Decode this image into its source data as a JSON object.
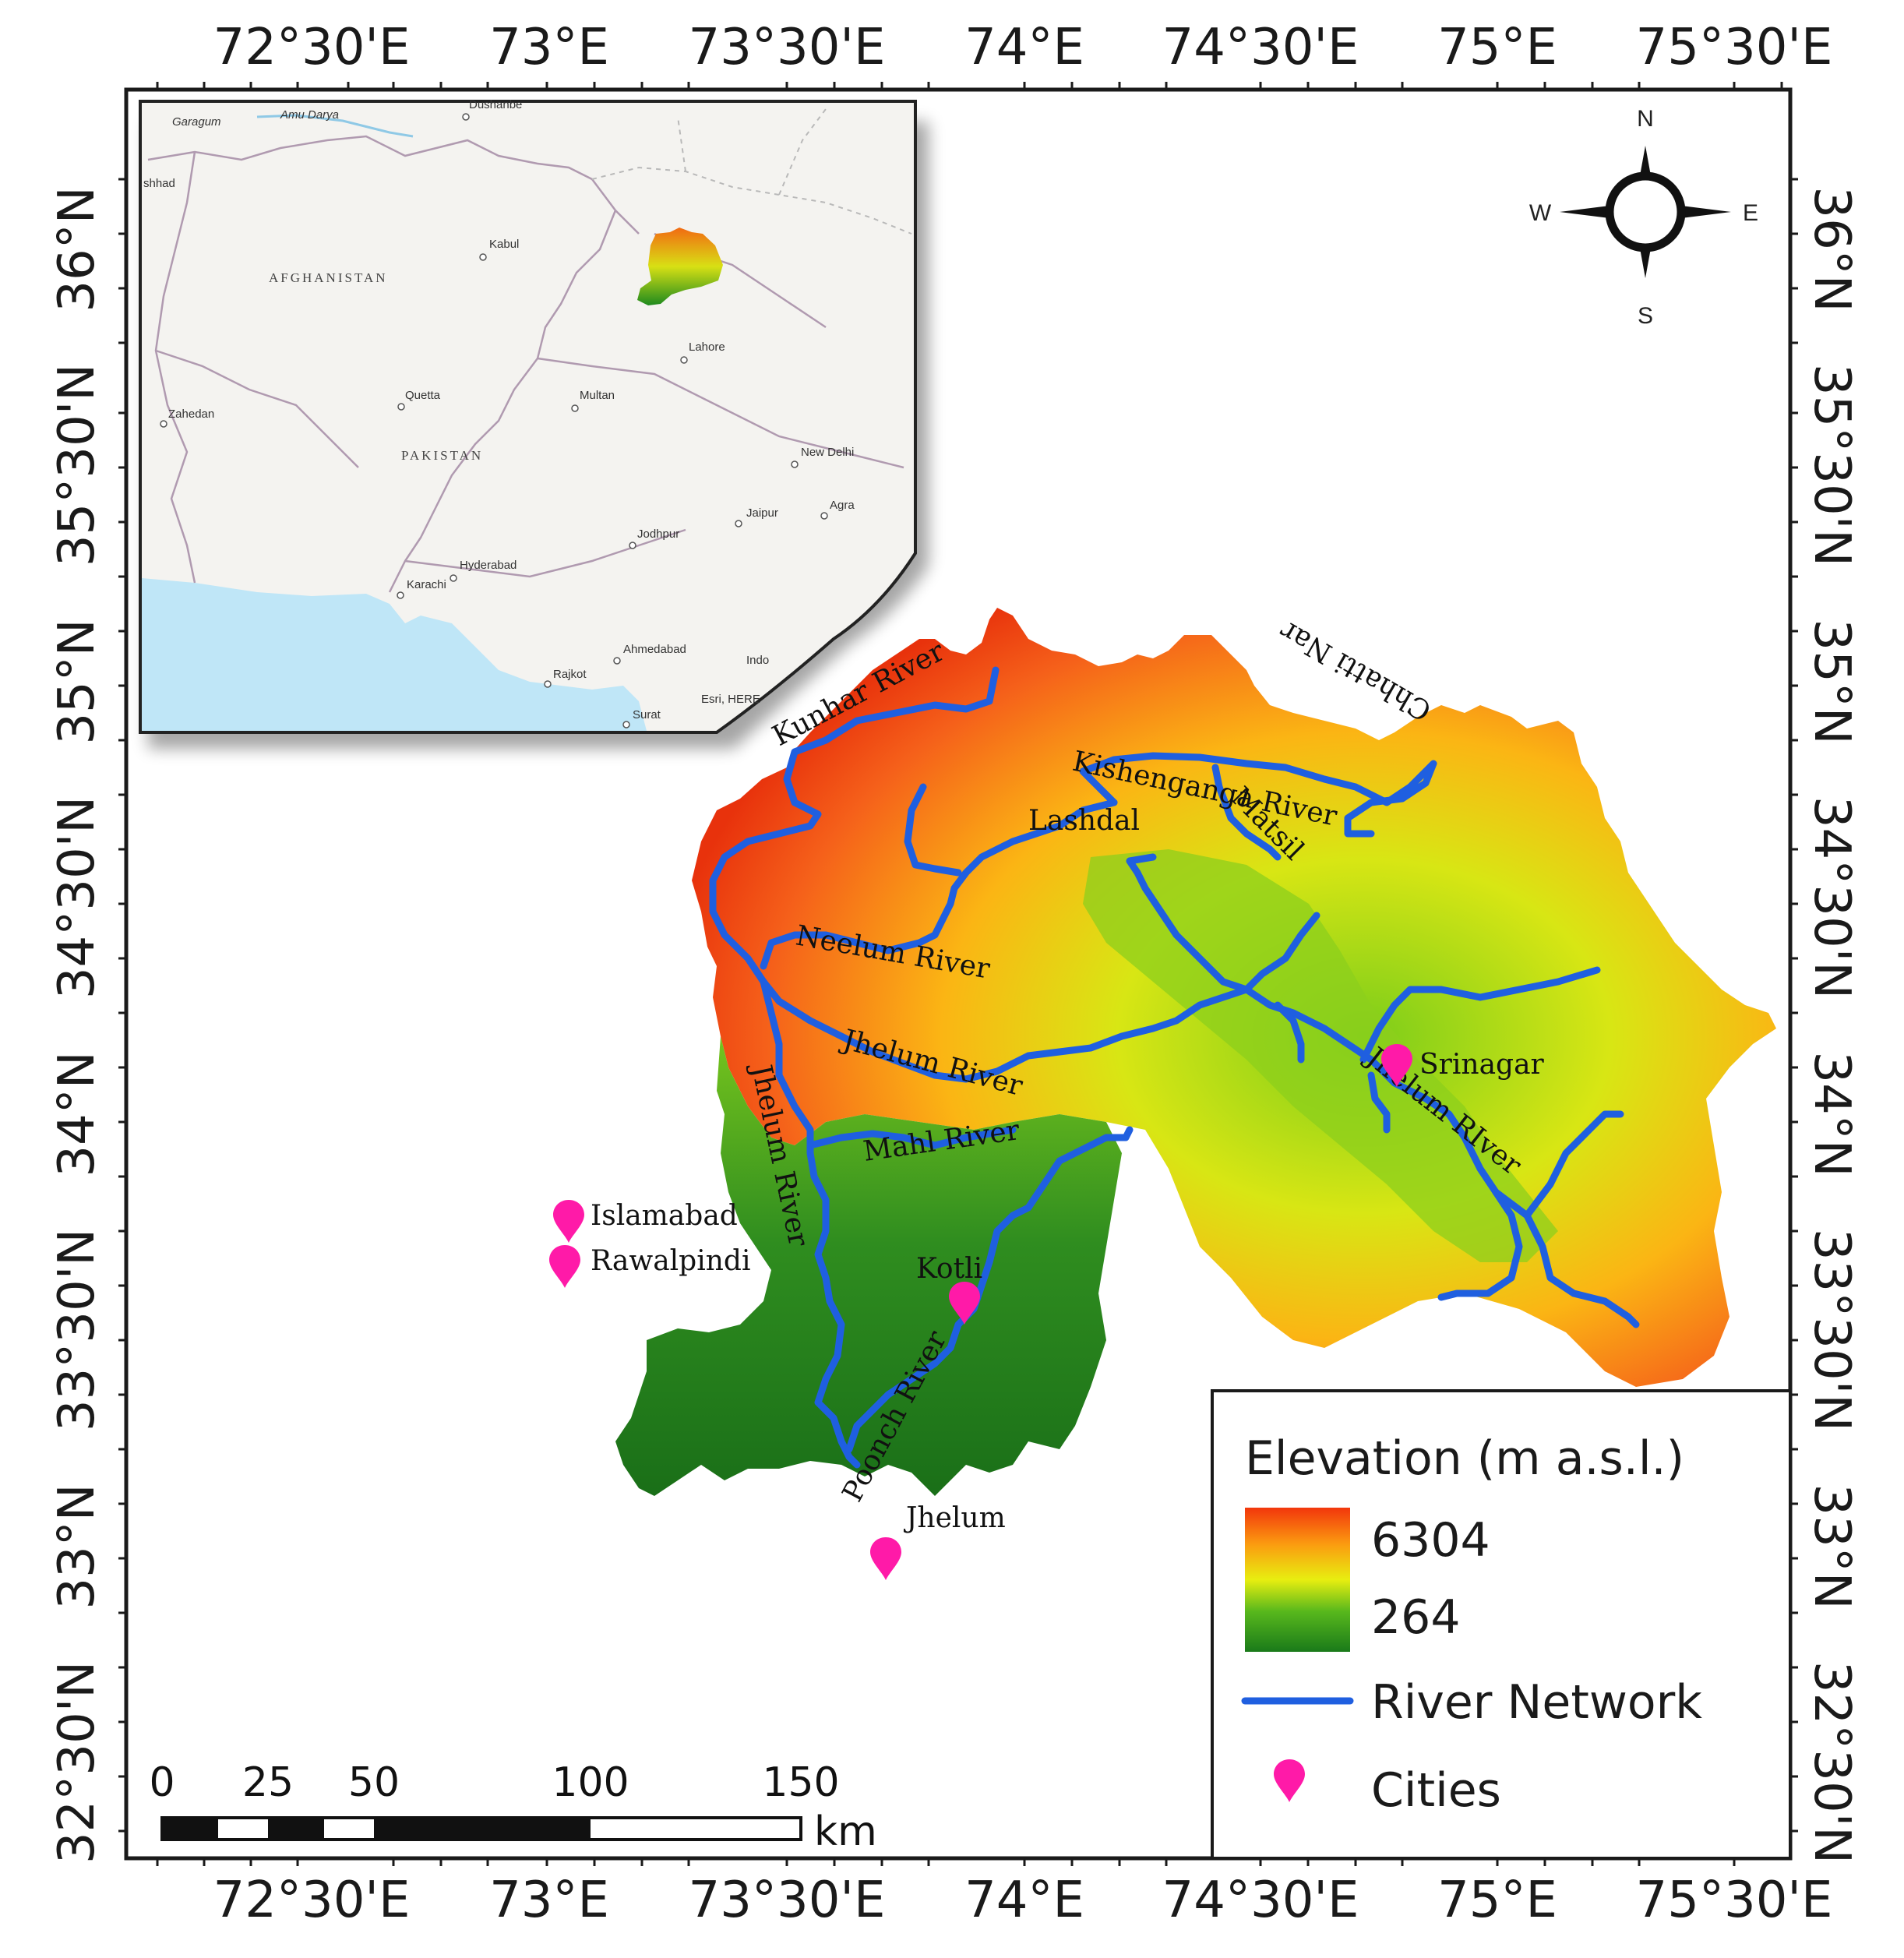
{
  "graticule": {
    "lon_labels": [
      "72°30'E",
      "73°E",
      "73°30'E",
      "74°E",
      "74°30'E",
      "75°E",
      "75°30'E"
    ],
    "lat_labels": [
      "36°N",
      "35°30'N",
      "35°N",
      "34°30'N",
      "34°N",
      "33°30'N",
      "33°N",
      "32°30'N"
    ]
  },
  "compass": {
    "n": "N",
    "s": "S",
    "e": "E",
    "w": "W"
  },
  "rivers": {
    "kunhar": "Kunhar River",
    "kishenganga": "Kishenganga River",
    "chhatti_nar": "Chhatti Nar",
    "lashdal": "Lashdal",
    "matsil": "Matsil",
    "neelum": "Neelum River",
    "jhelum_mid": "Jhelum River",
    "jhelum_west": "Jhelum River",
    "jhelum_east": "Jhelum RIver",
    "mahl": "Mahl River",
    "poonch": "Poonch River"
  },
  "cities": {
    "islamabad": "Islamabad",
    "rawalpindi": "Rawalpindi",
    "kotli": "Kotli",
    "srinagar": "Srinagar",
    "jhelum": "Jhelum"
  },
  "inset": {
    "afghanistan": "AFGHANISTAN",
    "pakistan": "PAKISTAN",
    "garagum": "Garagum",
    "dushanbe": "Dushanbe",
    "amu_darya": "Amu Darya",
    "mashhad": "shhad",
    "kabul": "Kabul",
    "lahore": "Lahore",
    "quetta": "Quetta",
    "multan": "Multan",
    "zahedan": "Zahedan",
    "new_delhi": "New Delhi",
    "jaipur": "Jaipur",
    "agra": "Agra",
    "jodhpur": "Jodhpur",
    "hyderabad": "Hyderabad",
    "karachi": "Karachi",
    "ahmedabad": "Ahmedabad",
    "rajkot": "Rajkot",
    "surat": "Surat",
    "indore": "Indo",
    "attribution": "Esri, HERE"
  },
  "legend": {
    "title": "Elevation (m a.s.l.)",
    "high": "6304",
    "low": "264",
    "river_network": "River Network",
    "cities": "Cities"
  },
  "scale_bar": {
    "labels": [
      "0",
      "25",
      "50",
      "100",
      "150"
    ],
    "unit": "km"
  },
  "colors": {
    "river": "#1f5fe0",
    "city_marker": "#ff1aa8",
    "elev_high": "#f02a0a",
    "elev_mid": "#e6e613",
    "elev_low": "#1e7d1c",
    "sea": "#bfe6f7"
  }
}
